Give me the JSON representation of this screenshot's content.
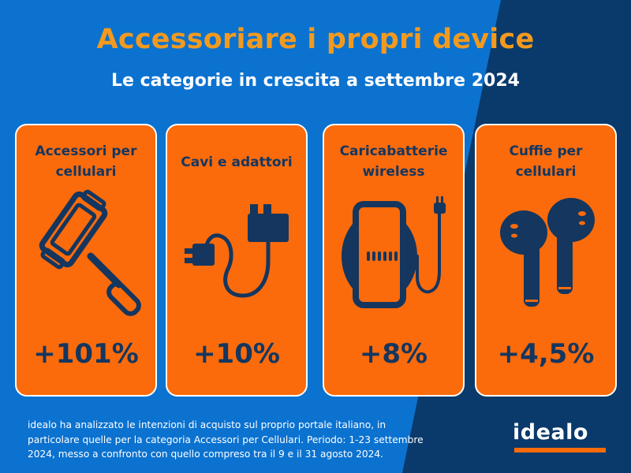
{
  "header": {
    "title": "Accessoriare i propri device",
    "subtitle": "Le categorie in crescita a settembre 2024"
  },
  "cards": [
    {
      "label_lines": [
        "Accessori per",
        "cellulari"
      ],
      "value": "+101%",
      "icon": "selfie-stick-icon"
    },
    {
      "label_lines": [
        "Cavi e adattori"
      ],
      "value": "+10%",
      "icon": "cable-adapter-icon"
    },
    {
      "label_lines": [
        "Caricabatterie",
        "wireless"
      ],
      "value": "+8%",
      "icon": "wireless-charger-icon"
    },
    {
      "label_lines": [
        "Cuffie per",
        "cellulari"
      ],
      "value": "+4,5%",
      "icon": "earbuds-icon"
    }
  ],
  "footnote": {
    "lines": [
      "idealo ha analizzato le intenzioni di acquisto sul proprio portale italiano, in",
      "particolare quelle per la categoria Accessori per Cellulari. Periodo: 1-23 settembre",
      "2024, messo a confronto con quello compreso tra il 9 e il 31 agosto 2024."
    ]
  },
  "logo": {
    "text": "idealo"
  },
  "colors": {
    "background_blue": "#0b72d0",
    "background_navy": "#0a3a6b",
    "accent_orange": "#fb6b0b",
    "title_orange": "#f39a1e",
    "icon_navy": "#14365f"
  }
}
